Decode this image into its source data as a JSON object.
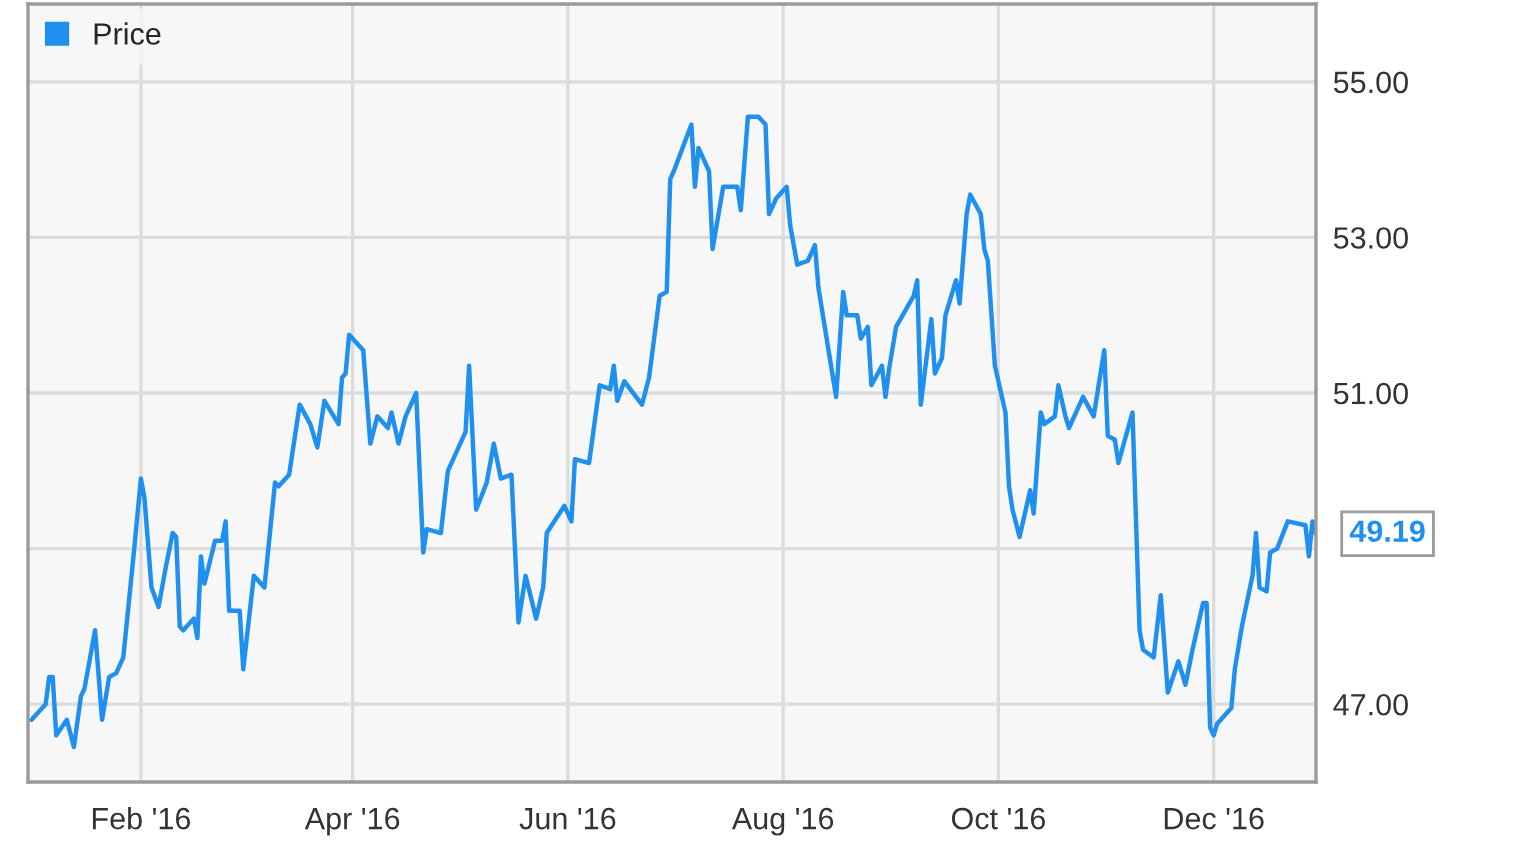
{
  "chart_data": {
    "type": "line",
    "x": [
      "2016-01-01",
      "2016-01-05",
      "2016-01-06",
      "2016-01-07",
      "2016-01-08",
      "2016-01-11",
      "2016-01-13",
      "2016-01-15",
      "2016-01-16",
      "2016-01-19",
      "2016-01-21",
      "2016-01-23",
      "2016-01-25",
      "2016-01-27",
      "2016-01-30",
      "2016-02-01",
      "2016-02-02",
      "2016-02-04",
      "2016-02-06",
      "2016-02-08",
      "2016-02-10",
      "2016-02-11",
      "2016-02-12",
      "2016-02-13",
      "2016-02-16",
      "2016-02-17",
      "2016-02-18",
      "2016-02-19",
      "2016-02-22",
      "2016-02-24",
      "2016-02-25",
      "2016-02-26",
      "2016-02-29",
      "2016-03-01",
      "2016-03-04",
      "2016-03-07",
      "2016-03-10",
      "2016-03-11",
      "2016-03-14",
      "2016-03-17",
      "2016-03-20",
      "2016-03-22",
      "2016-03-24",
      "2016-03-28",
      "2016-03-29",
      "2016-03-30",
      "2016-03-31",
      "2016-04-04",
      "2016-04-06",
      "2016-04-08",
      "2016-04-11",
      "2016-04-12",
      "2016-04-14",
      "2016-04-16",
      "2016-04-19",
      "2016-04-21",
      "2016-04-22",
      "2016-04-26",
      "2016-04-28",
      "2016-05-03",
      "2016-05-04",
      "2016-05-06",
      "2016-05-09",
      "2016-05-11",
      "2016-05-13",
      "2016-05-16",
      "2016-05-18",
      "2016-05-20",
      "2016-05-23",
      "2016-05-25",
      "2016-05-26",
      "2016-05-31",
      "2016-06-02",
      "2016-06-03",
      "2016-06-07",
      "2016-06-10",
      "2016-06-13",
      "2016-06-14",
      "2016-06-15",
      "2016-06-17",
      "2016-06-22",
      "2016-06-24",
      "2016-06-27",
      "2016-06-29",
      "2016-06-30",
      "2016-07-01",
      "2016-07-06",
      "2016-07-07",
      "2016-07-08",
      "2016-07-11",
      "2016-07-12",
      "2016-07-15",
      "2016-07-19",
      "2016-07-20",
      "2016-07-22",
      "2016-07-25",
      "2016-07-27",
      "2016-07-28",
      "2016-07-30",
      "2016-08-02",
      "2016-08-03",
      "2016-08-05",
      "2016-08-08",
      "2016-08-10",
      "2016-08-11",
      "2016-08-16",
      "2016-08-18",
      "2016-08-19",
      "2016-08-22",
      "2016-08-23",
      "2016-08-25",
      "2016-08-26",
      "2016-08-29",
      "2016-08-30",
      "2016-08-31",
      "2016-09-02",
      "2016-09-07",
      "2016-09-08",
      "2016-09-09",
      "2016-09-12",
      "2016-09-13",
      "2016-09-15",
      "2016-09-16",
      "2016-09-19",
      "2016-09-20",
      "2016-09-22",
      "2016-09-23",
      "2016-09-26",
      "2016-09-27",
      "2016-09-28",
      "2016-09-30",
      "2016-10-03",
      "2016-10-04",
      "2016-10-05",
      "2016-10-07",
      "2016-10-10",
      "2016-10-11",
      "2016-10-13",
      "2016-10-14",
      "2016-10-17",
      "2016-10-18",
      "2016-10-20",
      "2016-10-21",
      "2016-10-25",
      "2016-10-28",
      "2016-10-31",
      "2016-11-01",
      "2016-11-03",
      "2016-11-04",
      "2016-11-08",
      "2016-11-10",
      "2016-11-11",
      "2016-11-14",
      "2016-11-16",
      "2016-11-18",
      "2016-11-21",
      "2016-11-23",
      "2016-11-25",
      "2016-11-28",
      "2016-11-29",
      "2016-11-30",
      "2016-12-01",
      "2016-12-02",
      "2016-12-06",
      "2016-12-07",
      "2016-12-09",
      "2016-12-12",
      "2016-12-13",
      "2016-12-14",
      "2016-12-16",
      "2016-12-17",
      "2016-12-19",
      "2016-12-22",
      "2016-12-27",
      "2016-12-28",
      "2016-12-29",
      "2016-12-30"
    ],
    "series": [
      {
        "name": "Price",
        "color": "#1f8ff0",
        "values": [
          46.8,
          47.0,
          47.35,
          47.35,
          46.6,
          46.8,
          46.45,
          47.1,
          47.2,
          47.95,
          46.8,
          47.35,
          47.4,
          47.6,
          48.95,
          49.9,
          49.65,
          48.5,
          48.25,
          48.75,
          49.2,
          49.15,
          48.0,
          47.95,
          48.1,
          47.85,
          48.9,
          48.55,
          49.1,
          49.1,
          49.35,
          48.2,
          48.2,
          47.45,
          48.65,
          48.5,
          49.85,
          49.8,
          49.95,
          50.85,
          50.6,
          50.3,
          50.9,
          50.6,
          51.2,
          51.25,
          51.75,
          51.55,
          50.35,
          50.7,
          50.55,
          50.75,
          50.35,
          50.7,
          51.0,
          48.95,
          49.25,
          49.2,
          50.0,
          50.5,
          51.35,
          49.5,
          49.85,
          50.35,
          49.9,
          49.95,
          48.05,
          48.65,
          48.1,
          48.5,
          49.2,
          49.55,
          49.35,
          50.15,
          50.1,
          51.1,
          51.05,
          51.35,
          50.9,
          51.15,
          50.85,
          51.2,
          52.25,
          52.3,
          53.75,
          53.85,
          54.45,
          53.65,
          54.15,
          53.85,
          52.85,
          53.65,
          53.65,
          53.35,
          54.55,
          54.55,
          54.45,
          53.3,
          53.5,
          53.65,
          53.15,
          52.65,
          52.7,
          52.9,
          52.35,
          50.95,
          52.3,
          52.0,
          52.0,
          51.7,
          51.85,
          51.1,
          51.35,
          50.95,
          51.3,
          51.85,
          52.25,
          52.45,
          50.85,
          51.95,
          51.25,
          51.45,
          52.0,
          52.45,
          52.15,
          53.3,
          53.55,
          53.3,
          52.85,
          52.7,
          51.35,
          50.75,
          49.8,
          49.5,
          49.15,
          49.75,
          49.45,
          50.75,
          50.6,
          50.7,
          51.1,
          50.7,
          50.55,
          50.95,
          50.7,
          51.55,
          50.45,
          50.4,
          50.1,
          50.75,
          47.95,
          47.7,
          47.6,
          48.4,
          47.15,
          47.55,
          47.25,
          47.7,
          48.3,
          48.3,
          46.7,
          46.6,
          46.75,
          46.95,
          47.45,
          48.0,
          48.65,
          49.2,
          48.5,
          48.45,
          48.95,
          49.0,
          49.35,
          49.3,
          48.9,
          49.35,
          49.19
        ]
      }
    ],
    "xlim": [
      "2015-12-31",
      "2016-12-30"
    ],
    "xticks": [
      {
        "value": "2016-02-01",
        "label": "Feb '16"
      },
      {
        "value": "2016-04-01",
        "label": "Apr '16"
      },
      {
        "value": "2016-06-01",
        "label": "Jun '16"
      },
      {
        "value": "2016-08-01",
        "label": "Aug '16"
      },
      {
        "value": "2016-10-01",
        "label": "Oct '16"
      },
      {
        "value": "2016-12-01",
        "label": "Dec '16"
      }
    ],
    "ylim": [
      46,
      56
    ],
    "yticks": [
      {
        "value": 47,
        "label": "47.00"
      },
      {
        "value": 49,
        "label": null
      },
      {
        "value": 51,
        "label": "51.00"
      },
      {
        "value": 53,
        "label": "53.00"
      },
      {
        "value": 55,
        "label": "55.00"
      }
    ],
    "annotations": [
      {
        "text": "49.19",
        "x": "2016-12-30",
        "y": 49.19
      }
    ],
    "grid": true,
    "legend": "top left",
    "line_style": "solid",
    "marker": "none"
  }
}
